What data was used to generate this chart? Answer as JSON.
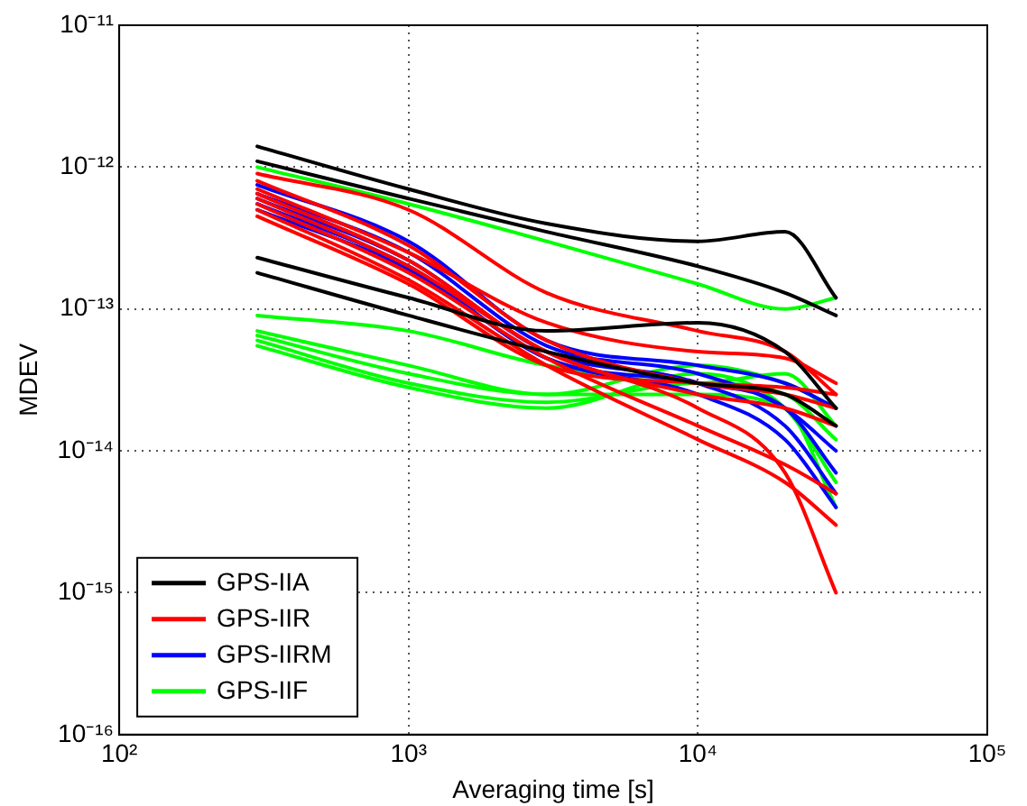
{
  "chart_data": {
    "type": "line",
    "xlabel": "Averaging time [s]",
    "ylabel": "MDEV",
    "log": "xy",
    "grid": true,
    "legend": "bottom left",
    "marker": "none",
    "line_style": "solid",
    "xlim": [
      100,
      100000
    ],
    "ylim": [
      1e-16,
      1e-11
    ],
    "xticks": [
      {
        "value": 100,
        "label": "10²"
      },
      {
        "value": 1000,
        "label": "10³"
      },
      {
        "value": 10000,
        "label": "10⁴"
      },
      {
        "value": 100000,
        "label": "10⁵"
      }
    ],
    "yticks": [
      {
        "value": 1e-16,
        "label": "10⁻¹⁶"
      },
      {
        "value": 1e-15,
        "label": "10⁻¹⁵"
      },
      {
        "value": 1e-14,
        "label": "10⁻¹⁴"
      },
      {
        "value": 1e-13,
        "label": "10⁻¹³"
      },
      {
        "value": 1e-12,
        "label": "10⁻¹²"
      },
      {
        "value": 1e-11,
        "label": "10⁻¹¹"
      }
    ],
    "x": [
      300,
      1000,
      3000,
      10000,
      20000,
      30000
    ],
    "series": [
      {
        "name": "GPS-IIA",
        "color": "#000000",
        "values": [
          1.4e-12,
          7e-13,
          4e-13,
          3e-13,
          3.5e-13,
          1.2e-13
        ]
      },
      {
        "color": "#000000",
        "values": [
          1.1e-12,
          6e-13,
          3.5e-13,
          2e-13,
          1.3e-13,
          9e-14
        ]
      },
      {
        "color": "#000000",
        "values": [
          2.3e-13,
          1.2e-13,
          7e-14,
          8e-14,
          5e-14,
          2e-14
        ]
      },
      {
        "color": "#000000",
        "values": [
          1.8e-13,
          9e-14,
          5e-14,
          3e-14,
          2.5e-14,
          1.5e-14
        ]
      },
      {
        "name": "GPS-IIR",
        "color": "#ff0000",
        "values": [
          9e-13,
          5e-13,
          1.3e-13,
          7e-14,
          5e-14,
          2.5e-14
        ]
      },
      {
        "color": "#ff0000",
        "values": [
          7e-13,
          2.5e-13,
          8e-14,
          5e-14,
          4.5e-14,
          3e-14
        ]
      },
      {
        "color": "#ff0000",
        "values": [
          6e-13,
          2e-13,
          5e-14,
          2e-14,
          7e-15,
          1e-15
        ]
      },
      {
        "color": "#ff0000",
        "values": [
          5e-13,
          1.6e-13,
          4e-14,
          1.2e-14,
          6e-15,
          3e-15
        ]
      },
      {
        "color": "#ff0000",
        "values": [
          5.5e-13,
          1.8e-13,
          4.5e-14,
          1.5e-14,
          8e-15,
          5e-15
        ]
      },
      {
        "color": "#ff0000",
        "values": [
          8e-13,
          2.8e-13,
          6e-14,
          3e-14,
          2.5e-14,
          2e-14
        ]
      },
      {
        "color": "#ff0000",
        "values": [
          6.5e-13,
          2.2e-13,
          5e-14,
          2.5e-14,
          2e-14,
          1.5e-14
        ]
      },
      {
        "color": "#ff0000",
        "values": [
          4.5e-13,
          1.5e-13,
          4e-14,
          3e-14,
          2.8e-14,
          2.5e-14
        ]
      },
      {
        "name": "GPS-IIRM",
        "color": "#0000ff",
        "values": [
          7.5e-13,
          3e-13,
          6e-14,
          4e-14,
          3e-14,
          2e-14
        ]
      },
      {
        "color": "#0000ff",
        "values": [
          6.5e-13,
          2.5e-13,
          5.5e-14,
          3.5e-14,
          2e-14,
          1e-14
        ]
      },
      {
        "color": "#0000ff",
        "values": [
          6e-13,
          2.2e-13,
          5e-14,
          3e-14,
          1.5e-14,
          5e-15
        ]
      },
      {
        "color": "#0000ff",
        "values": [
          5.5e-13,
          2e-13,
          4.5e-14,
          3e-14,
          2e-14,
          7e-15
        ]
      },
      {
        "color": "#0000ff",
        "values": [
          5e-13,
          1.9e-13,
          4.5e-14,
          2.5e-14,
          1.2e-14,
          4e-15
        ]
      },
      {
        "name": "GPS-IIF",
        "color": "#00ff00",
        "values": [
          1e-12,
          5.5e-13,
          3e-13,
          1.5e-13,
          1e-13,
          1.2e-13
        ]
      },
      {
        "color": "#00ff00",
        "values": [
          9e-14,
          7e-14,
          4e-14,
          3e-14,
          3.5e-14,
          1.5e-14
        ]
      },
      {
        "color": "#00ff00",
        "values": [
          7e-14,
          4e-14,
          2.5e-14,
          2.5e-14,
          2e-14,
          4e-15
        ]
      },
      {
        "color": "#00ff00",
        "values": [
          6e-14,
          3e-14,
          2.2e-14,
          3e-14,
          2.5e-14,
          1.2e-14
        ]
      },
      {
        "color": "#00ff00",
        "values": [
          5.5e-14,
          2.8e-14,
          2e-14,
          3.5e-14,
          2e-14,
          6e-15
        ]
      },
      {
        "color": "#00ff00",
        "values": [
          6.5e-14,
          3.5e-14,
          2.5e-14,
          4e-14,
          3e-14,
          2e-14
        ]
      }
    ]
  }
}
